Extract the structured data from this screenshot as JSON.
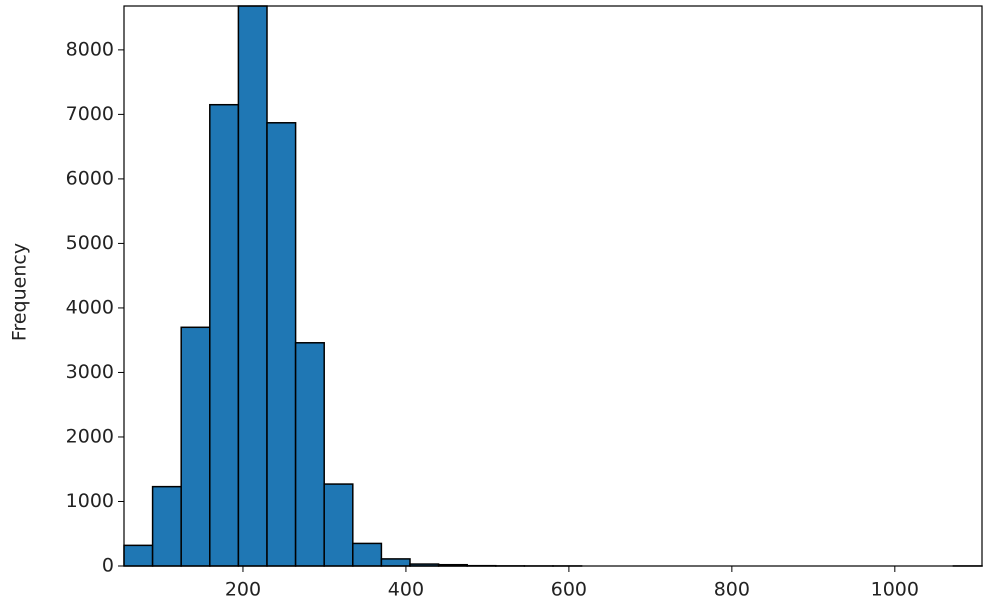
{
  "chart_data": {
    "type": "histogram",
    "ylabel": "Frequency",
    "bins": [
      54,
      89.1,
      124.2,
      159.3,
      194.4,
      229.5,
      264.6,
      299.7,
      334.8,
      369.9,
      405,
      440.1,
      475.2,
      510.3,
      545.4,
      580.5,
      615.6,
      650.7,
      685.8,
      720.9,
      756,
      791.1,
      826.2,
      861.3,
      896.4,
      931.5,
      966.6,
      1001.7,
      1036.8,
      1071.9,
      1107
    ],
    "values": [
      320,
      1230,
      3700,
      7150,
      8680,
      6870,
      3460,
      1270,
      350,
      110,
      30,
      20,
      5,
      2,
      1,
      1,
      0,
      0,
      0,
      0,
      0,
      0,
      0,
      0,
      0,
      0,
      0,
      0,
      0,
      1
    ],
    "color": "#1f77b4",
    "edgecolor": "#000000",
    "xlim": [
      54,
      1107
    ],
    "ylim": [
      0,
      8680
    ],
    "xticks": [
      200,
      400,
      600,
      800,
      1000
    ],
    "yticks": [
      0,
      1000,
      2000,
      3000,
      4000,
      5000,
      6000,
      7000,
      8000
    ]
  }
}
